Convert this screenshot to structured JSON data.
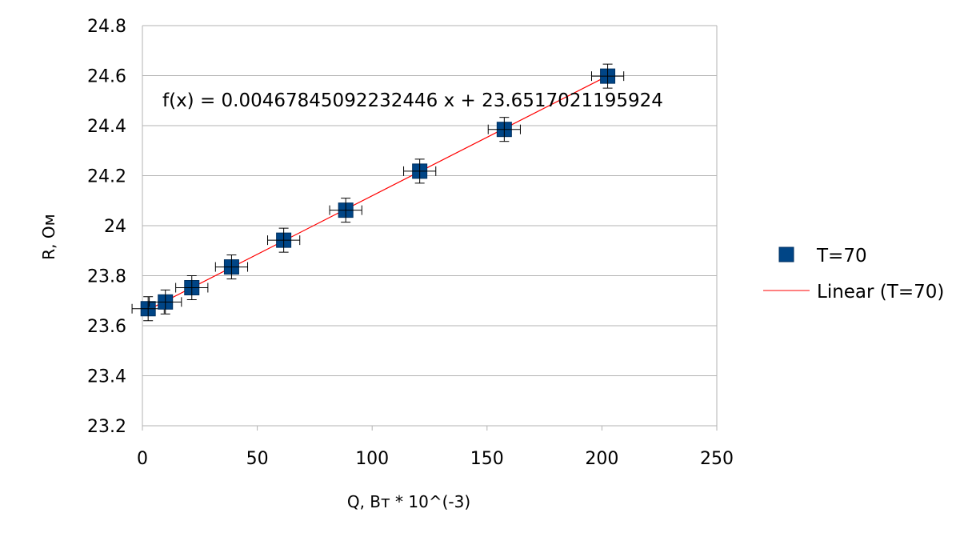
{
  "chart_data": {
    "type": "scatter",
    "title": "",
    "xlabel": "Q, Вт * 10^(-3)",
    "ylabel": "R, Ом",
    "xlim": [
      0,
      250
    ],
    "ylim": [
      23.2,
      24.8
    ],
    "x_ticks": [
      "0",
      "50",
      "100",
      "150",
      "200",
      "250"
    ],
    "y_ticks": [
      "23.2",
      "23.4",
      "23.6",
      "23.8",
      "24",
      "24.2",
      "24.4",
      "24.6",
      "24.8"
    ],
    "grid": "horizontal",
    "legend_position": "right",
    "series": [
      {
        "name": "T=70",
        "marker": "square",
        "color": "#004586",
        "x": [
          2.5,
          10,
          21.5,
          38.8,
          61.5,
          88.5,
          120.7,
          157.5,
          202.5
        ],
        "y": [
          23.668,
          23.695,
          23.752,
          23.835,
          23.942,
          24.062,
          24.218,
          24.385,
          24.598
        ],
        "y_error": 0.048,
        "x_error": 7
      }
    ],
    "trendline": {
      "name": "Linear (T=70)",
      "color": "#ff0000",
      "slope": 0.00467845092232446,
      "intercept": 23.6517021195924,
      "x_range": [
        0,
        202.5
      ],
      "equation": "f(x) = 0.00467845092232446 x + 23.6517021195924"
    }
  }
}
